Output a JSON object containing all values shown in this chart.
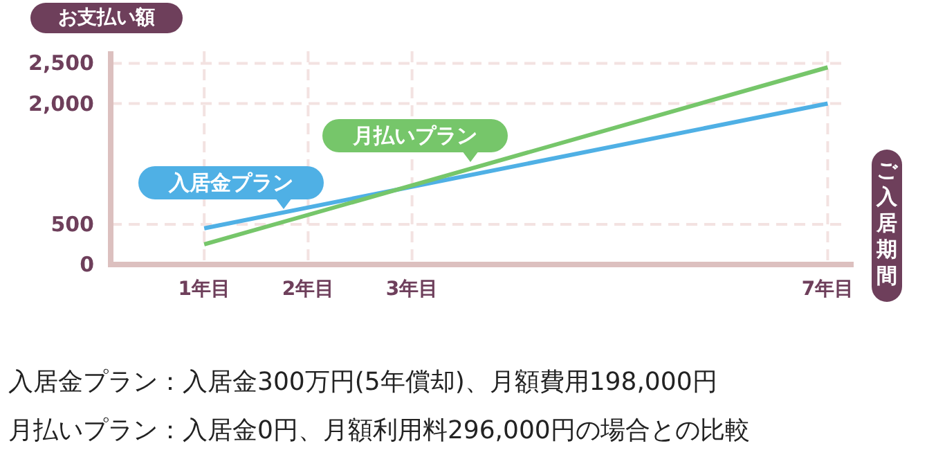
{
  "chart_data": {
    "type": "line",
    "ylabel": "お支払い額",
    "xlabel": "ご入居期間",
    "x": [
      1,
      7
    ],
    "xlim": [
      0.1,
      7.25
    ],
    "xticks": [
      {
        "value": 1,
        "label": "1年目"
      },
      {
        "value": 2,
        "label": "2年目"
      },
      {
        "value": 3,
        "label": "3年目"
      },
      {
        "value": 7,
        "label": "7年目"
      }
    ],
    "ylim": [
      0,
      2650
    ],
    "yticks": [
      {
        "value": 0,
        "label": "0"
      },
      {
        "value": 500,
        "label": "500"
      },
      {
        "value": 2000,
        "label": "2,000"
      },
      {
        "value": 2500,
        "label": "2,500"
      }
    ],
    "series": [
      {
        "name": "入居金プラン",
        "color": "#4fb0e5",
        "values": [
          450,
          2000
        ]
      },
      {
        "name": "月払いプラン",
        "color": "#76c66a",
        "values": [
          250,
          2450
        ]
      }
    ],
    "grid": true,
    "marker": "none",
    "line_style": "solid",
    "annotations": [
      "入居金プラン：入居金300万円(5年償却)、月額費用198,000円",
      "月払いプラン：入居金0円、月額利用料296,000円の場合との比較"
    ]
  }
}
